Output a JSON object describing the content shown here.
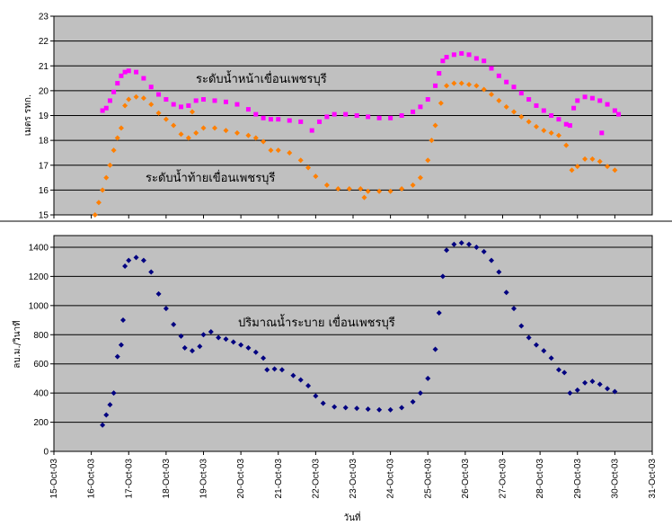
{
  "colors": {
    "plot_bg": "#c0c0c0",
    "grid": "#000000",
    "upstream": "#ff00ff",
    "downstream": "#ff7f00",
    "discharge": "#000080"
  },
  "chart_data": [
    {
      "type": "scatter",
      "ylabel": "เมตร รทก.",
      "ylim": [
        15,
        23
      ],
      "yticks": [
        15,
        16,
        17,
        18,
        19,
        20,
        21,
        22,
        23
      ],
      "xlim": [
        "15-Oct-03",
        "30-Oct-03"
      ],
      "grid": true,
      "annotations": [
        "ระดับน้ำหน้าเขื่อนเพชรบุรี",
        "ระดับน้ำท้ายเขื่อนเพชรบุรี"
      ],
      "series": [
        {
          "name": "ระดับน้ำหน้าเขื่อนเพชรบุรี",
          "marker": "square",
          "points": [
            [
              16.3,
              19.2
            ],
            [
              16.4,
              19.3
            ],
            [
              16.5,
              19.6
            ],
            [
              16.6,
              19.95
            ],
            [
              16.7,
              20.3
            ],
            [
              16.8,
              20.6
            ],
            [
              16.9,
              20.75
            ],
            [
              17.0,
              20.8
            ],
            [
              17.2,
              20.75
            ],
            [
              17.4,
              20.5
            ],
            [
              17.6,
              20.15
            ],
            [
              17.8,
              19.85
            ],
            [
              18.0,
              19.65
            ],
            [
              18.2,
              19.45
            ],
            [
              18.4,
              19.35
            ],
            [
              18.6,
              19.4
            ],
            [
              18.8,
              19.6
            ],
            [
              19.0,
              19.65
            ],
            [
              19.3,
              19.6
            ],
            [
              19.6,
              19.55
            ],
            [
              19.9,
              19.45
            ],
            [
              20.2,
              19.25
            ],
            [
              20.4,
              19.05
            ],
            [
              20.6,
              18.9
            ],
            [
              20.8,
              18.85
            ],
            [
              21.0,
              18.85
            ],
            [
              21.3,
              18.8
            ],
            [
              21.6,
              18.75
            ],
            [
              21.9,
              18.4
            ],
            [
              22.1,
              18.75
            ],
            [
              22.3,
              18.95
            ],
            [
              22.5,
              19.05
            ],
            [
              22.8,
              19.05
            ],
            [
              23.1,
              19.0
            ],
            [
              23.4,
              18.95
            ],
            [
              23.7,
              18.9
            ],
            [
              24.0,
              18.9
            ],
            [
              24.3,
              19.0
            ],
            [
              24.6,
              19.15
            ],
            [
              24.8,
              19.35
            ],
            [
              25.0,
              19.65
            ],
            [
              25.2,
              20.2
            ],
            [
              25.3,
              20.7
            ],
            [
              25.4,
              21.2
            ],
            [
              25.5,
              21.35
            ],
            [
              25.7,
              21.45
            ],
            [
              25.9,
              21.5
            ],
            [
              26.1,
              21.45
            ],
            [
              26.3,
              21.3
            ],
            [
              26.5,
              21.2
            ],
            [
              26.7,
              20.9
            ],
            [
              26.9,
              20.6
            ],
            [
              27.1,
              20.35
            ],
            [
              27.3,
              20.15
            ],
            [
              27.5,
              19.9
            ],
            [
              27.7,
              19.65
            ],
            [
              27.9,
              19.4
            ],
            [
              28.1,
              19.2
            ],
            [
              28.3,
              19.0
            ],
            [
              28.5,
              18.85
            ],
            [
              28.7,
              18.65
            ],
            [
              28.8,
              18.6
            ],
            [
              28.9,
              19.3
            ],
            [
              29.0,
              19.6
            ],
            [
              29.2,
              19.75
            ],
            [
              29.4,
              19.7
            ],
            [
              29.6,
              19.6
            ],
            [
              29.8,
              19.45
            ],
            [
              30.0,
              19.2
            ],
            [
              29.65,
              18.3
            ],
            [
              30.1,
              19.05
            ]
          ]
        },
        {
          "name": "ระดับน้ำท้ายเขื่อนเพชรบุรี",
          "marker": "diamond",
          "points": [
            [
              16.1,
              15.0
            ],
            [
              16.2,
              15.5
            ],
            [
              16.3,
              16.0
            ],
            [
              16.4,
              16.5
            ],
            [
              16.5,
              17.0
            ],
            [
              16.6,
              17.6
            ],
            [
              16.7,
              18.1
            ],
            [
              16.8,
              18.5
            ],
            [
              16.9,
              19.4
            ],
            [
              17.0,
              19.65
            ],
            [
              17.2,
              19.75
            ],
            [
              17.4,
              19.7
            ],
            [
              17.6,
              19.45
            ],
            [
              17.8,
              19.1
            ],
            [
              18.0,
              18.85
            ],
            [
              18.2,
              18.6
            ],
            [
              18.4,
              18.25
            ],
            [
              18.6,
              18.1
            ],
            [
              18.7,
              19.15
            ],
            [
              18.8,
              18.3
            ],
            [
              19.0,
              18.5
            ],
            [
              19.3,
              18.5
            ],
            [
              19.6,
              18.4
            ],
            [
              19.9,
              18.3
            ],
            [
              20.2,
              18.2
            ],
            [
              20.4,
              18.1
            ],
            [
              20.6,
              17.95
            ],
            [
              20.8,
              17.6
            ],
            [
              21.0,
              17.6
            ],
            [
              21.3,
              17.5
            ],
            [
              21.6,
              17.2
            ],
            [
              21.8,
              16.9
            ],
            [
              22.0,
              16.55
            ],
            [
              22.3,
              16.2
            ],
            [
              22.6,
              16.05
            ],
            [
              22.9,
              16.05
            ],
            [
              23.2,
              16.05
            ],
            [
              23.3,
              15.7
            ],
            [
              23.4,
              15.95
            ],
            [
              23.7,
              15.95
            ],
            [
              24.0,
              15.95
            ],
            [
              24.3,
              16.05
            ],
            [
              24.6,
              16.2
            ],
            [
              24.8,
              16.5
            ],
            [
              25.0,
              17.2
            ],
            [
              25.1,
              18.0
            ],
            [
              25.2,
              18.6
            ],
            [
              25.35,
              19.5
            ],
            [
              25.5,
              20.2
            ],
            [
              25.7,
              20.3
            ],
            [
              25.9,
              20.3
            ],
            [
              26.1,
              20.25
            ],
            [
              26.3,
              20.2
            ],
            [
              26.5,
              20.05
            ],
            [
              26.7,
              19.85
            ],
            [
              26.9,
              19.6
            ],
            [
              27.1,
              19.35
            ],
            [
              27.3,
              19.15
            ],
            [
              27.5,
              18.95
            ],
            [
              27.7,
              18.75
            ],
            [
              27.9,
              18.55
            ],
            [
              28.1,
              18.4
            ],
            [
              28.3,
              18.3
            ],
            [
              28.5,
              18.2
            ],
            [
              28.7,
              17.8
            ],
            [
              28.85,
              16.8
            ],
            [
              29.0,
              16.95
            ],
            [
              29.2,
              17.25
            ],
            [
              29.4,
              17.25
            ],
            [
              29.6,
              17.15
            ],
            [
              29.8,
              16.95
            ],
            [
              30.0,
              16.8
            ]
          ]
        }
      ]
    },
    {
      "type": "scatter",
      "xlabel": "วันที่",
      "ylabel": "ลบ.ม./วินาที",
      "ylim": [
        0,
        1400
      ],
      "yticks": [
        0,
        200,
        400,
        600,
        800,
        1000,
        1200,
        1400
      ],
      "xlim": [
        "15-Oct-03",
        "31-Oct-03"
      ],
      "xticks": [
        "15-Oct-03",
        "16-Oct-03",
        "17-Oct-03",
        "18-Oct-03",
        "19-Oct-03",
        "20-Oct-03",
        "21-Oct-03",
        "22-Oct-03",
        "23-Oct-03",
        "24-Oct-03",
        "25-Oct-03",
        "26-Oct-03",
        "27-Oct-03",
        "28-Oct-03",
        "29-Oct-03",
        "30-Oct-03",
        "31-Oct-03"
      ],
      "grid": true,
      "annotations": [
        "ปริมาณน้ำระบาย เขื่อนเพชรบุรี"
      ],
      "series": [
        {
          "name": "ปริมาณน้ำระบาย เขื่อนเพชรบุรี",
          "marker": "diamond",
          "points": [
            [
              16.3,
              180
            ],
            [
              16.4,
              250
            ],
            [
              16.5,
              320
            ],
            [
              16.6,
              400
            ],
            [
              16.7,
              650
            ],
            [
              16.8,
              730
            ],
            [
              16.85,
              900
            ],
            [
              16.9,
              1270
            ],
            [
              17.0,
              1310
            ],
            [
              17.2,
              1330
            ],
            [
              17.4,
              1310
            ],
            [
              17.6,
              1230
            ],
            [
              17.8,
              1080
            ],
            [
              18.0,
              980
            ],
            [
              18.2,
              870
            ],
            [
              18.4,
              790
            ],
            [
              18.5,
              710
            ],
            [
              18.7,
              690
            ],
            [
              18.9,
              720
            ],
            [
              19.0,
              800
            ],
            [
              19.2,
              820
            ],
            [
              19.4,
              780
            ],
            [
              19.6,
              770
            ],
            [
              19.8,
              750
            ],
            [
              20.0,
              730
            ],
            [
              20.2,
              710
            ],
            [
              20.4,
              680
            ],
            [
              20.6,
              640
            ],
            [
              20.7,
              560
            ],
            [
              20.9,
              565
            ],
            [
              21.1,
              560
            ],
            [
              21.4,
              520
            ],
            [
              21.6,
              490
            ],
            [
              21.8,
              450
            ],
            [
              22.0,
              380
            ],
            [
              22.2,
              330
            ],
            [
              22.5,
              305
            ],
            [
              22.8,
              300
            ],
            [
              23.1,
              295
            ],
            [
              23.4,
              290
            ],
            [
              23.7,
              285
            ],
            [
              24.0,
              285
            ],
            [
              24.3,
              300
            ],
            [
              24.6,
              340
            ],
            [
              24.8,
              400
            ],
            [
              25.0,
              500
            ],
            [
              25.2,
              700
            ],
            [
              25.3,
              950
            ],
            [
              25.4,
              1200
            ],
            [
              25.5,
              1380
            ],
            [
              25.7,
              1420
            ],
            [
              25.9,
              1430
            ],
            [
              26.1,
              1420
            ],
            [
              26.3,
              1400
            ],
            [
              26.5,
              1370
            ],
            [
              26.7,
              1310
            ],
            [
              26.9,
              1230
            ],
            [
              27.1,
              1090
            ],
            [
              27.3,
              980
            ],
            [
              27.5,
              860
            ],
            [
              27.7,
              780
            ],
            [
              27.9,
              730
            ],
            [
              28.1,
              690
            ],
            [
              28.3,
              640
            ],
            [
              28.5,
              560
            ],
            [
              28.65,
              540
            ],
            [
              28.8,
              400
            ],
            [
              29.0,
              420
            ],
            [
              29.2,
              470
            ],
            [
              29.4,
              480
            ],
            [
              29.6,
              460
            ],
            [
              29.8,
              430
            ],
            [
              30.0,
              410
            ]
          ]
        }
      ]
    }
  ]
}
